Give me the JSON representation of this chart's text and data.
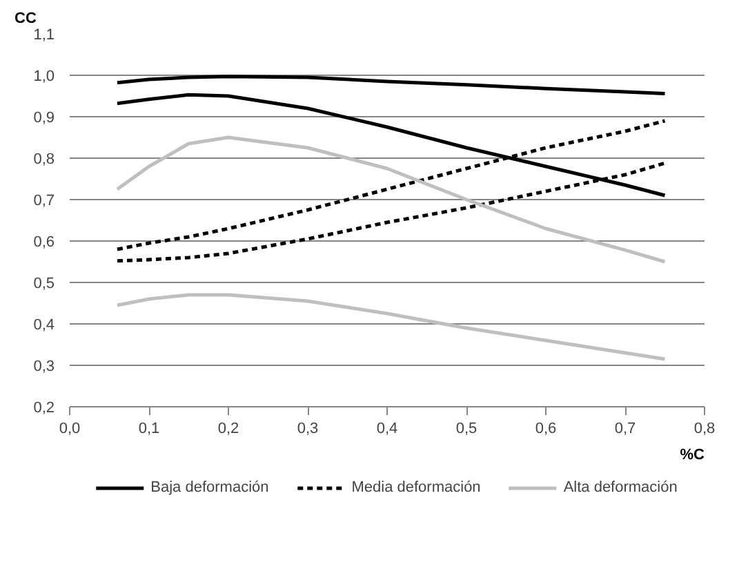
{
  "chart_data": {
    "type": "line",
    "xlabel": "%C",
    "ylabel": "CC",
    "x": [
      0.06,
      0.1,
      0.15,
      0.2,
      0.3,
      0.4,
      0.5,
      0.6,
      0.7,
      0.75
    ],
    "series": [
      {
        "name": "Baja deformación",
        "color": "#000000",
        "line_style": "solid",
        "values": [
          0.982,
          0.99,
          0.995,
          0.997,
          0.995,
          0.985,
          0.977,
          0.968,
          0.96,
          0.956
        ]
      },
      {
        "color": "#000000",
        "line_style": "solid",
        "values": [
          0.932,
          0.942,
          0.953,
          0.95,
          0.92,
          0.875,
          0.825,
          0.78,
          0.735,
          0.71
        ]
      },
      {
        "name": "Media deformación",
        "color": "#000000",
        "line_style": "dashed",
        "values": [
          0.58,
          0.595,
          0.61,
          0.63,
          0.675,
          0.725,
          0.775,
          0.825,
          0.865,
          0.89
        ]
      },
      {
        "color": "#000000",
        "line_style": "dashed",
        "values": [
          0.552,
          0.555,
          0.56,
          0.57,
          0.605,
          0.645,
          0.68,
          0.72,
          0.76,
          0.788
        ]
      },
      {
        "name": "Alta deformación",
        "color": "#bfbfbf",
        "line_style": "solid",
        "values": [
          0.725,
          0.78,
          0.835,
          0.85,
          0.825,
          0.775,
          0.7,
          0.63,
          0.578,
          0.55
        ]
      },
      {
        "color": "#bfbfbf",
        "line_style": "solid",
        "values": [
          0.445,
          0.46,
          0.47,
          0.47,
          0.455,
          0.425,
          0.39,
          0.36,
          0.33,
          0.315
        ]
      }
    ],
    "xlim": [
      0,
      0.8
    ],
    "xticks": [
      {
        "value": 0,
        "label": "0,0"
      },
      {
        "value": 0.1,
        "label": "0,1"
      },
      {
        "value": 0.2,
        "label": "0,2"
      },
      {
        "value": 0.3,
        "label": "0,3"
      },
      {
        "value": 0.4,
        "label": "0,4"
      },
      {
        "value": 0.5,
        "label": "0,5"
      },
      {
        "value": 0.6,
        "label": "0,6"
      },
      {
        "value": 0.7,
        "label": "0,7"
      },
      {
        "value": 0.8,
        "label": "0,8"
      }
    ],
    "ylim": [
      0.2,
      1.1
    ],
    "yticks": [
      {
        "value": 0.2,
        "label": "0,2"
      },
      {
        "value": 0.3,
        "label": "0,3"
      },
      {
        "value": 0.4,
        "label": "0,4"
      },
      {
        "value": 0.5,
        "label": "0,5"
      },
      {
        "value": 0.6,
        "label": "0,6"
      },
      {
        "value": 0.7,
        "label": "0,7"
      },
      {
        "value": 0.8,
        "label": "0,8"
      },
      {
        "value": 0.9,
        "label": "0,9"
      },
      {
        "value": 1.0,
        "label": "1,0"
      },
      {
        "value": 1.1,
        "label": "1,1"
      }
    ],
    "grid": "y",
    "legend": "bottom",
    "marker": "none"
  }
}
